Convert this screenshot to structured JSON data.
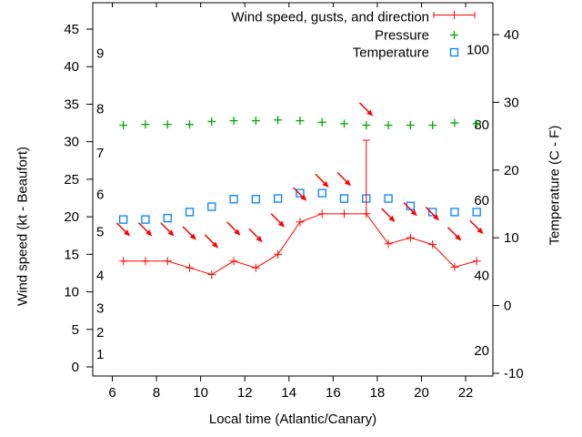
{
  "chart": {
    "legend": [
      {
        "label": "Wind speed, gusts, and direction",
        "color": "#ff0000",
        "marker": "errorbar-plus"
      },
      {
        "label": "Pressure",
        "color": "#00a800",
        "marker": "plus"
      },
      {
        "label": "Temperature",
        "color": "#0080ff",
        "marker": "open-square"
      }
    ],
    "x_axis": {
      "label": "Local time (Atlantic/Canary)",
      "ticks": [
        6,
        8,
        10,
        12,
        14,
        16,
        18,
        20,
        22
      ]
    },
    "y_axis_left": {
      "label": "Wind speed (kt - Beaufort)",
      "ticks": [
        0,
        5,
        10,
        15,
        20,
        25,
        30,
        35,
        40,
        45
      ],
      "beaufort_labels": [
        {
          "text": "1",
          "kt": 1.7
        },
        {
          "text": "2",
          "kt": 4.6
        },
        {
          "text": "3",
          "kt": 7.8
        },
        {
          "text": "4",
          "kt": 12.2
        },
        {
          "text": "5",
          "kt": 18.0
        },
        {
          "text": "6",
          "kt": 23.0
        },
        {
          "text": "7",
          "kt": 28.5
        },
        {
          "text": "8",
          "kt": 34.4
        },
        {
          "text": "9",
          "kt": 41.8
        }
      ]
    },
    "y_axis_right": {
      "label": "Temperature (C - F)",
      "ticks_c": [
        -10,
        0,
        10,
        20,
        30,
        40
      ],
      "fahrenheit_labels": [
        20,
        40,
        60,
        80,
        100
      ]
    }
  },
  "chart_data": {
    "type": "line",
    "x_hours": [
      6.5,
      7.5,
      8.5,
      9.5,
      10.5,
      11.5,
      12.5,
      13.5,
      14.5,
      15.5,
      16.5,
      17.5,
      18.5,
      19.5,
      20.5,
      21.5,
      22.5
    ],
    "series": [
      {
        "name": "wind_speed",
        "unit": "kt",
        "color": "#ff0000",
        "style": "line with plus markers",
        "values": [
          14.1,
          14.1,
          14.1,
          13.2,
          12.3,
          14.1,
          13.2,
          15.0,
          19.3,
          20.4,
          20.4,
          20.4,
          16.4,
          17.2,
          16.3,
          13.3,
          14.1
        ]
      },
      {
        "name": "wind_gust_direction_arrows",
        "unit": "kt",
        "color": "#ff0000",
        "style": "arrows plotted at gust height, all pointing down-right (wind from NW toward SE)",
        "values": [
          18.3,
          18.3,
          18.3,
          17.8,
          16.7,
          18.4,
          17.5,
          19.5,
          23.0,
          24.8,
          25.0,
          34.3,
          20.2,
          21.0,
          20.4,
          17.7,
          18.6
        ]
      },
      {
        "name": "temperature",
        "unit": "C",
        "color": "#0080ff",
        "style": "open squares",
        "values": [
          12.7,
          12.7,
          12.9,
          13.8,
          14.6,
          15.7,
          15.7,
          15.8,
          16.6,
          16.6,
          15.8,
          15.8,
          15.8,
          14.7,
          13.8,
          13.8,
          13.8
        ]
      },
      {
        "name": "pressure",
        "unit": "unlabeled axis (positions given on left kt scale)",
        "color": "#00a800",
        "style": "plus markers",
        "values": [
          32.2,
          32.3,
          32.3,
          32.3,
          32.7,
          32.8,
          32.8,
          32.9,
          32.8,
          32.6,
          32.4,
          32.2,
          32.2,
          32.2,
          32.2,
          32.5,
          32.4
        ]
      }
    ],
    "gust_errorbar": {
      "x_hour": 17.5,
      "from_kt": 20.4,
      "to_kt": 30.2
    },
    "xlim_hours": [
      5.1,
      23.2
    ],
    "ylim_left_kt": [
      -1.2,
      48.5
    ],
    "ylim_right_c": [
      -10.4,
      44.7
    ],
    "grid": false,
    "legend_position": "inside top-right"
  }
}
